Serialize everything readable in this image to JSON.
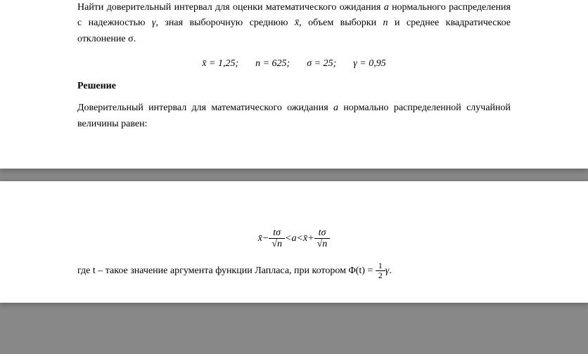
{
  "page1": {
    "problem": {
      "line1_prefix": "Найти доверительный интервал для оценки математического ожидания ",
      "a": "a",
      "line2_prefix": " нормального распределения с надежностью ",
      "gamma": "γ",
      "line2_mid": ", зная выборочную среднюю ",
      "xbar": "x̄",
      "line2_end": ", объем выборки ",
      "n": "n",
      "line3_mid": " и среднее квадратическое отклонение ",
      "sigma": "σ",
      "line3_end": "."
    },
    "formula_values": {
      "xbar_eq": "x̄ = 1,25;",
      "n_eq": "n = 625;",
      "sigma_eq": "σ = 25;",
      "gamma_eq": "γ = 0,95"
    },
    "solution_heading": "Решение",
    "solution_text": {
      "prefix": "Доверительный интервал для математического ожидания ",
      "a": "a",
      "suffix": " нормально распределенной случайной величины равен:"
    }
  },
  "page2": {
    "formula": {
      "xbar": "x̄",
      "minus": " − ",
      "frac_num": "tσ",
      "frac_den": "√n",
      "lt": " < ",
      "a": "a",
      "plus": " + "
    },
    "explanation": {
      "prefix": "где t – такое значение аргумента функции Лапласа, при котором ",
      "phi": "Φ(t) = ",
      "half": "½",
      "gamma": "γ",
      "period": "."
    }
  }
}
